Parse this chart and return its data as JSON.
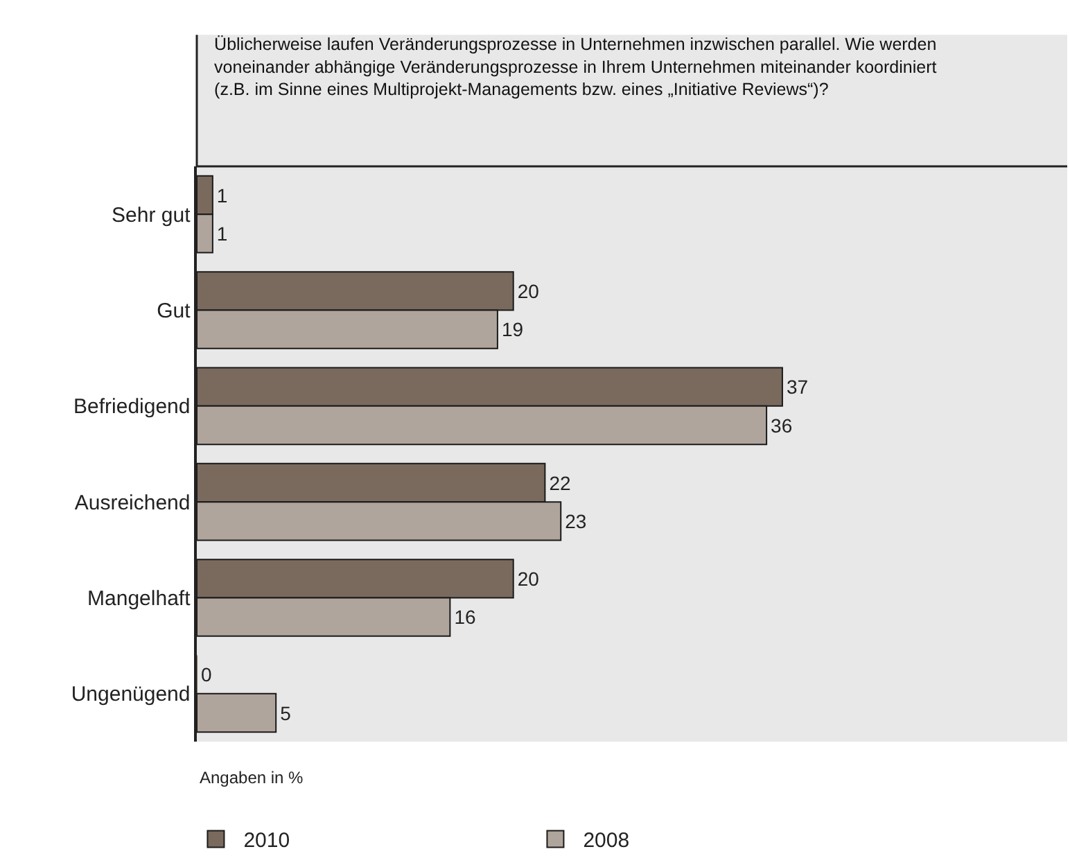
{
  "chart_data": {
    "type": "bar",
    "orientation": "horizontal",
    "title": "Üblicherweise laufen Veränderungsprozesse in Unternehmen inzwischen parallel. Wie werden voneinander abhängige Veränderungsprozesse in Ihrem Unternehmen miteinander koordiniert (z.B. im Sinne eines Multiprojekt-Managements bzw. eines „Initiative Reviews“)?",
    "categories": [
      "Sehr gut",
      "Gut",
      "Befriedigend",
      "Ausreichend",
      "Mangelhaft",
      "Ungenügend"
    ],
    "series": [
      {
        "name": "2010",
        "color": "#7a6a5e",
        "values": [
          1,
          20,
          37,
          22,
          20,
          0
        ]
      },
      {
        "name": "2008",
        "color": "#b0a59c",
        "values": [
          1,
          19,
          36,
          23,
          16,
          5
        ]
      }
    ],
    "xlim": [
      0,
      55
    ],
    "tick_labels": "y",
    "grid": false,
    "legend": "bottom",
    "data_labels": true,
    "annotations": [
      "Angaben in %"
    ]
  }
}
